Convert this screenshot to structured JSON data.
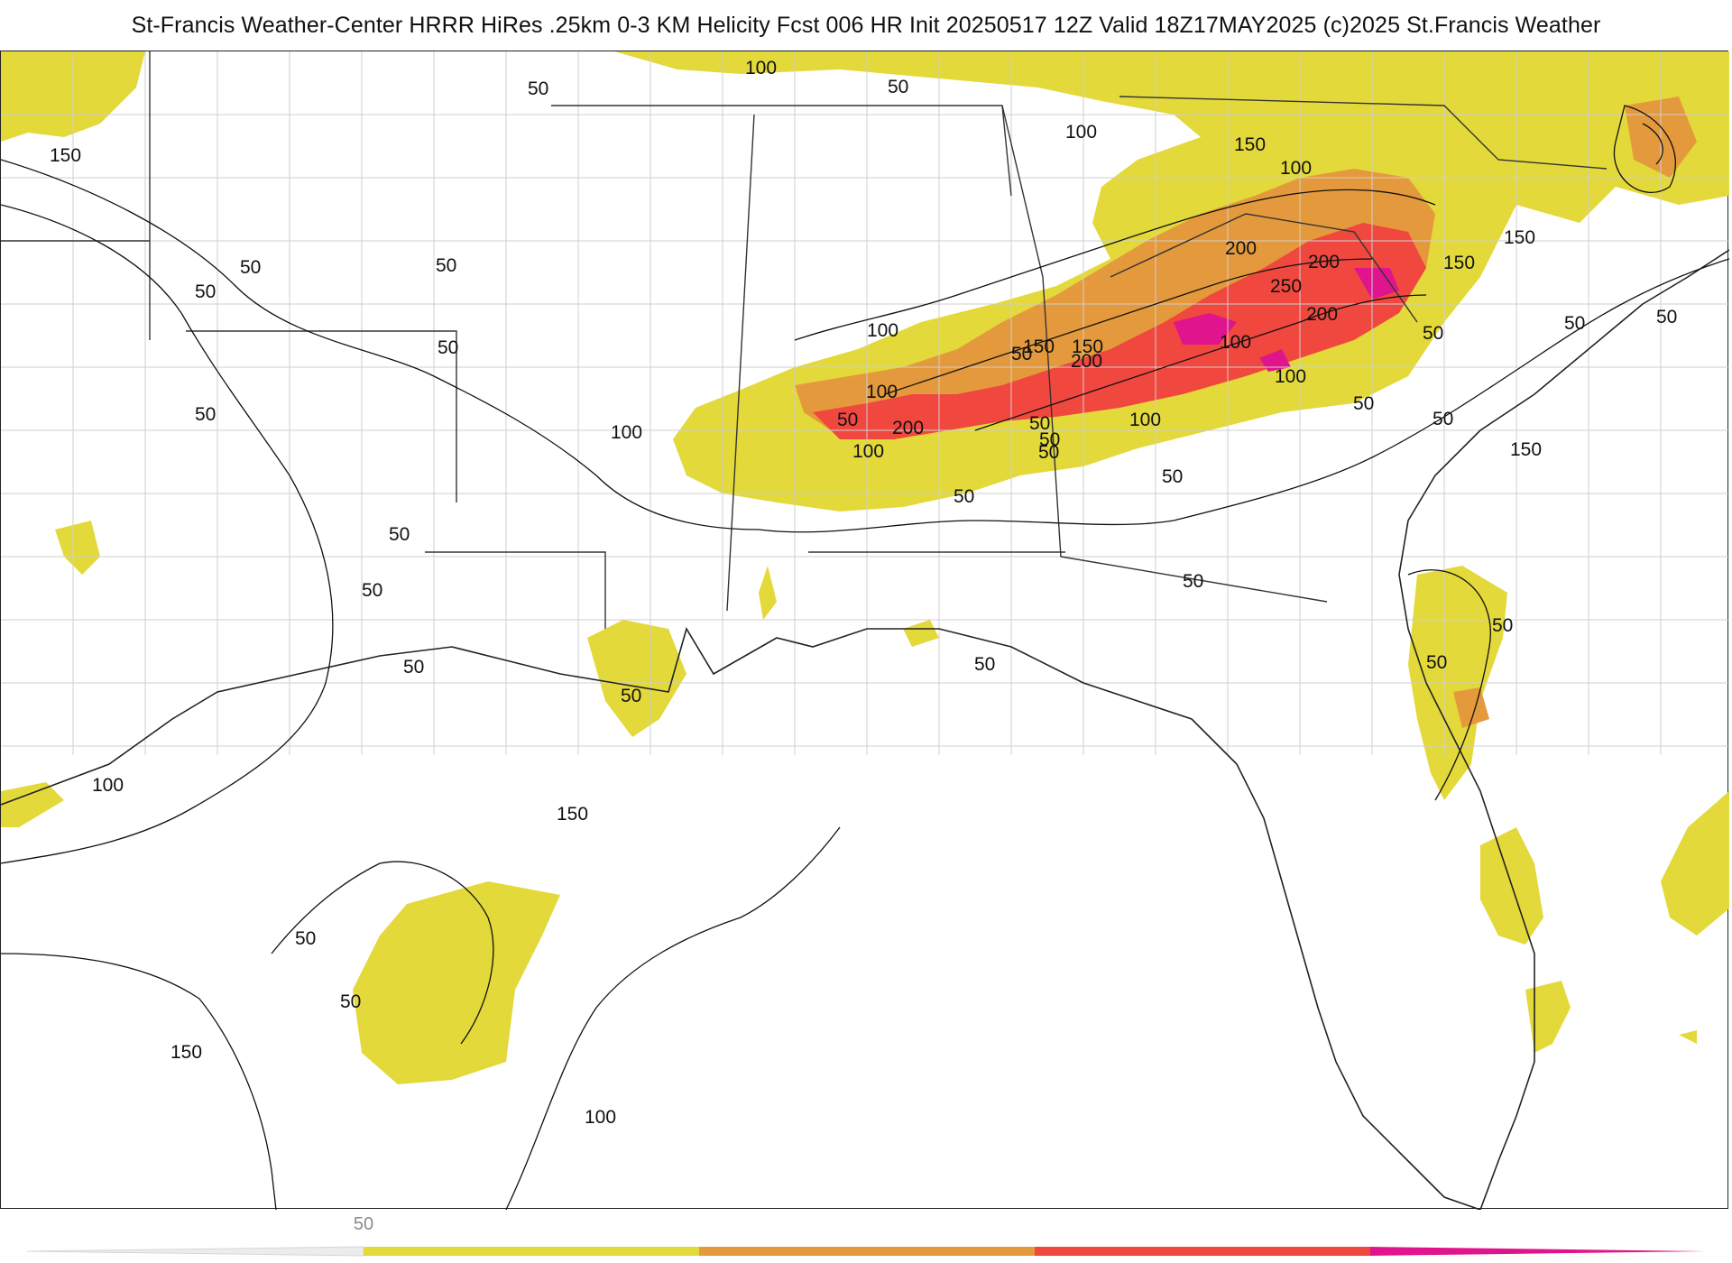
{
  "title": "St-Francis Weather-Center HRRR HiRes .25km 0-3 KM Helicity Fcst 006 HR Init 20250517 12Z  Valid 18Z17MAY2025    (c)2025 St.Francis Weather",
  "colors": {
    "yellow": "#e3d93a",
    "orange": "#e49a3c",
    "red": "#f0473f",
    "magenta": "#e0148c",
    "contour": "#111111",
    "border": "#8f8f8f"
  },
  "legend": {
    "tick_label": "50",
    "bins": [
      "yellow",
      "orange",
      "red",
      "magenta"
    ]
  },
  "contour_labels": [
    "150",
    "100",
    "50",
    "50",
    "100",
    "50",
    "150",
    "100",
    "150",
    "200",
    "250",
    "200",
    "150",
    "200",
    "150",
    "100",
    "100",
    "50",
    "50",
    "50",
    "50",
    "50",
    "100",
    "150",
    "100",
    "50",
    "100",
    "50",
    "50",
    "50",
    "50",
    "50",
    "50",
    "50",
    "50",
    "50",
    "50",
    "50",
    "50",
    "50",
    "100",
    "150",
    "50",
    "50",
    "150",
    "100",
    "200",
    "50",
    "50",
    "100",
    "50",
    "150",
    "50",
    "50",
    "100",
    "200"
  ]
}
